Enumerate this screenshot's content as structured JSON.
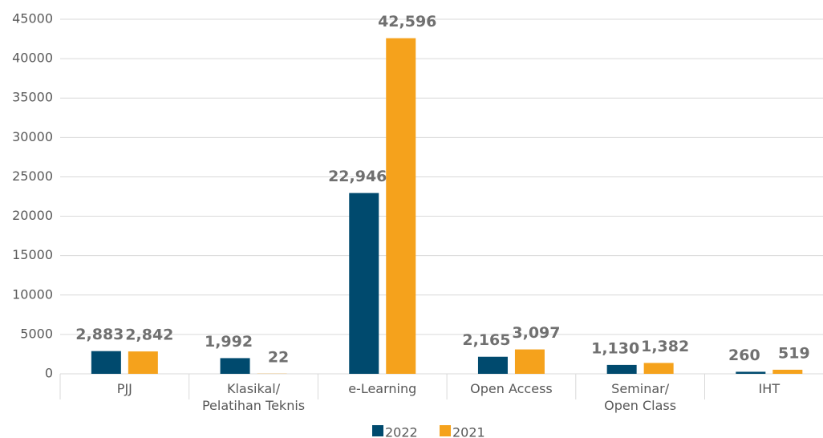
{
  "chart_data": {
    "type": "bar",
    "categories": [
      "PJJ",
      "Klasikal/\nPelatihan Teknis",
      "e-Learning",
      "Open Access",
      "Seminar/\nOpen Class",
      "IHT"
    ],
    "series": [
      {
        "name": "2022",
        "color": "#004a6e",
        "values": [
          2883,
          1992,
          22946,
          2165,
          1130,
          260
        ],
        "value_labels": [
          "2,883",
          "1,992",
          "22,946",
          "2,165",
          "1,130",
          "260"
        ]
      },
      {
        "name": "2021",
        "color": "#f5a21c",
        "values": [
          2842,
          22,
          42596,
          3097,
          1382,
          519
        ],
        "value_labels": [
          "2,842",
          "22",
          "42,596",
          "3,097",
          "1,382",
          "519"
        ]
      }
    ],
    "ylim": [
      0,
      45000
    ],
    "yticks": [
      0,
      5000,
      10000,
      15000,
      20000,
      25000,
      30000,
      35000,
      40000,
      45000
    ],
    "grid": true,
    "legend": "bottom"
  }
}
